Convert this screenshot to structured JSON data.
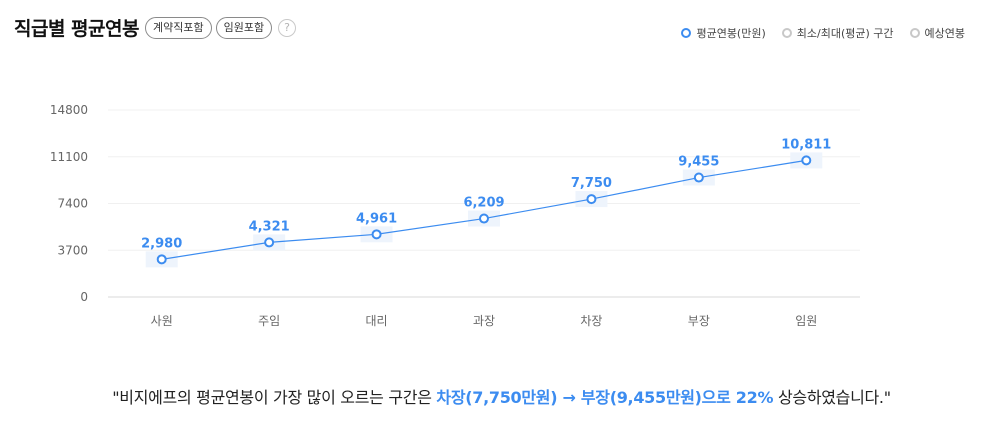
{
  "header": {
    "title": "직급별 평균연봉",
    "chips": [
      "계약직포함",
      "임원포함"
    ],
    "help_glyph": "?"
  },
  "legend": [
    {
      "label": "평균연봉(만원)",
      "color": "#3c8cf0"
    },
    {
      "label": "최소/최대(평균) 구간",
      "color": "#c8c8c8"
    },
    {
      "label": "예상연봉",
      "color": "#c8c8c8"
    }
  ],
  "chart_data": {
    "type": "line",
    "categories": [
      "사원",
      "주임",
      "대리",
      "과장",
      "차장",
      "부장",
      "임원"
    ],
    "series": [
      {
        "name": "평균연봉(만원)",
        "values": [
          2980,
          4321,
          4961,
          6209,
          7750,
          9455,
          10811
        ]
      }
    ],
    "data_labels": [
      "2,980",
      "4,321",
      "4,961",
      "6,209",
      "7,750",
      "9,455",
      "10,811"
    ],
    "yticks": [
      0,
      3700,
      7400,
      11100,
      14800
    ],
    "ylim": [
      0,
      14800
    ],
    "grid": true,
    "color": "#3c8cf0"
  },
  "summary": {
    "prefix": "\"비지에프의 평균연봉이 가장 많이 오르는 구간은 ",
    "highlight": "차장(7,750만원) → 부장(9,455만원)으로 22%",
    "suffix": " 상승하였습니다.\""
  }
}
